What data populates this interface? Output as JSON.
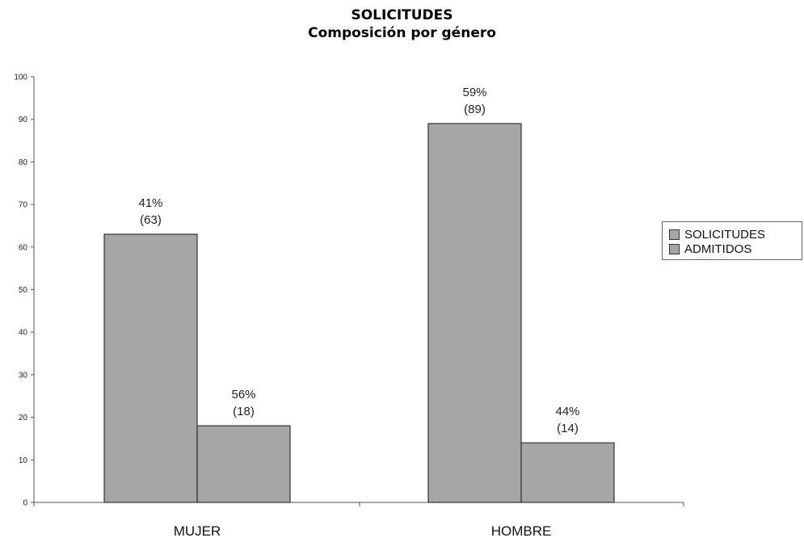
{
  "title": "SOLICITUDES",
  "subtitle": "Composición por género",
  "legend": [
    "SOLICITUDES",
    "ADMITIDOS"
  ],
  "colors": {
    "bar_fill": "#a6a6a6",
    "bar_stroke": "#333333",
    "axis": "#555555"
  },
  "chart_data": {
    "type": "bar",
    "title": "SOLICITUDES",
    "subtitle": "Composición por género",
    "categories": [
      "MUJER",
      "HOMBRE"
    ],
    "series": [
      {
        "name": "SOLICITUDES",
        "values": [
          63,
          89
        ],
        "labels": [
          [
            "41%",
            "(63)"
          ],
          [
            "59%",
            "(89)"
          ]
        ]
      },
      {
        "name": "ADMITIDOS",
        "values": [
          18,
          14
        ],
        "labels": [
          [
            "56%",
            "(18)"
          ],
          [
            "44%",
            "(14)"
          ]
        ]
      }
    ],
    "ylim": [
      0,
      100
    ],
    "yticks": [
      0,
      10,
      20,
      30,
      40,
      50,
      60,
      70,
      80,
      90,
      100
    ],
    "legend_position": "right",
    "grid": false
  }
}
